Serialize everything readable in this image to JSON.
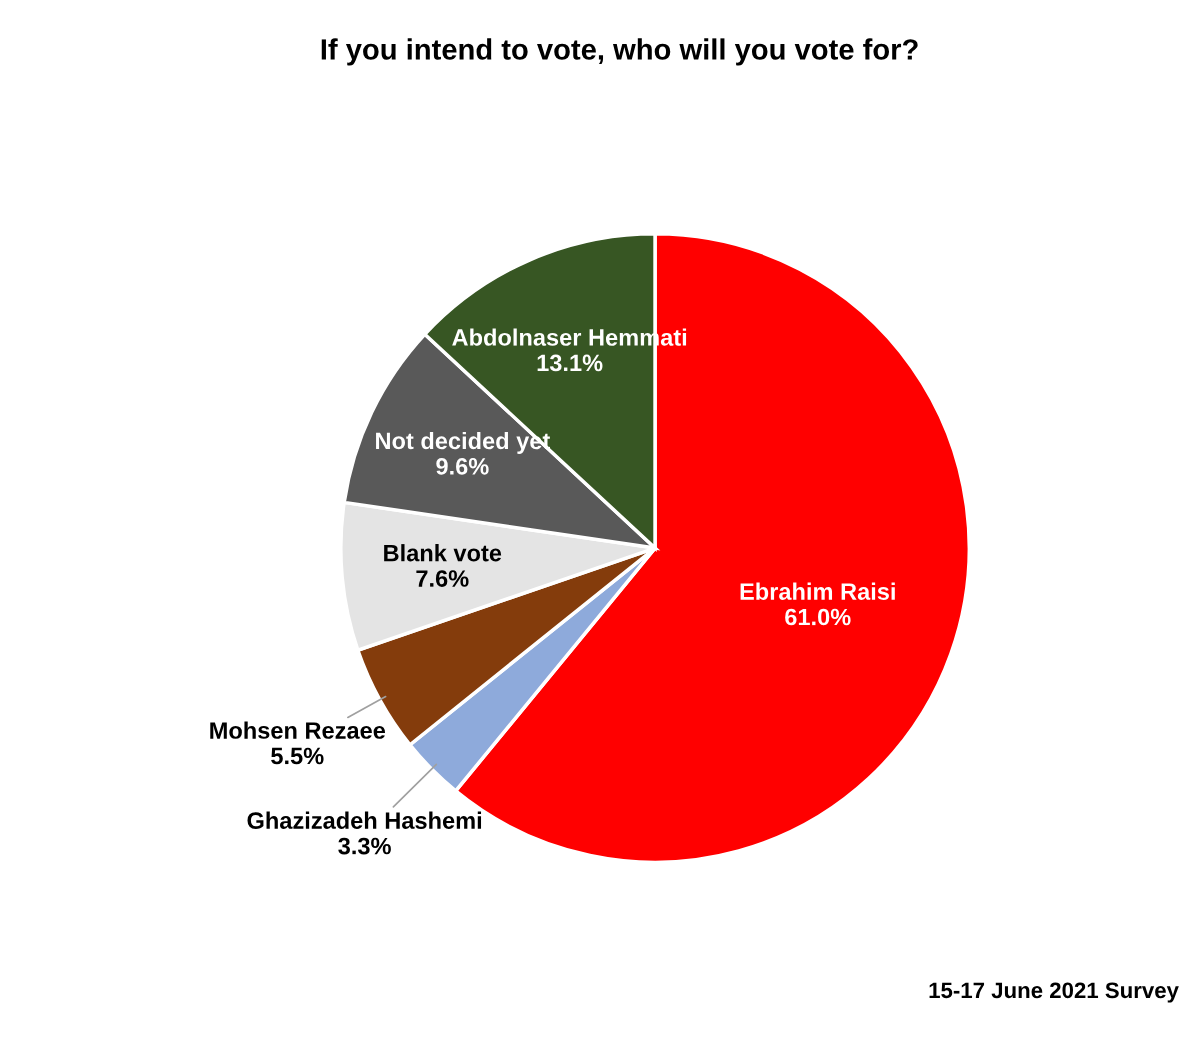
{
  "chart_data": {
    "type": "pie",
    "title": "If you intend to vote, who will you vote for?",
    "categories": [
      "Ebrahim Raisi",
      "Ghazizadeh Hashemi",
      "Mohsen Rezaee",
      "Blank vote",
      "Not decided yet",
      "Abdolnaser Hemmati"
    ],
    "values": [
      61.0,
      3.3,
      5.5,
      7.6,
      9.6,
      13.1
    ],
    "value_labels": [
      "61.0%",
      "3.3%",
      "5.5%",
      "7.6%",
      "9.6%",
      "13.1%"
    ],
    "colors": [
      "#ff0000",
      "#8eaadb",
      "#843c0c",
      "#e4e4e4",
      "#595959",
      "#375623"
    ],
    "annotations": [
      "15-17 June 2021 Survey"
    ]
  }
}
